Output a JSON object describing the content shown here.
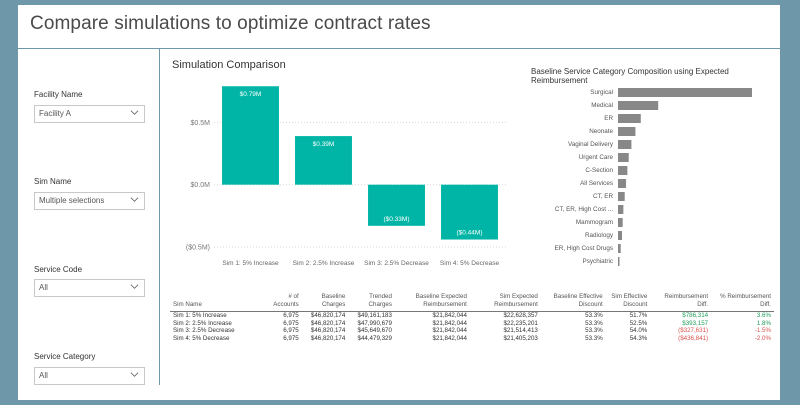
{
  "page": {
    "title": "Compare simulations to optimize contract rates"
  },
  "slicers": [
    {
      "label": "Facility Name",
      "value": "Facility A"
    },
    {
      "label": "Sim Name",
      "value": "Multiple selections"
    },
    {
      "label": "Service Code",
      "value": "All"
    },
    {
      "label": "Service Category",
      "value": "All"
    }
  ],
  "chart_data": [
    {
      "type": "bar",
      "title": "Simulation Comparison",
      "categories": [
        "Sim 1: 5% Increase",
        "Sim 2: 2.5% Increase",
        "Sim 3: 2.5% Decrease",
        "Sim 4: 5% Decrease"
      ],
      "values": [
        0.79,
        0.39,
        -0.33,
        -0.44
      ],
      "data_labels": [
        "$0.79M",
        "$0.39M",
        "($0.33M)",
        "($0.44M)"
      ],
      "ylim": [
        -0.5,
        0.8
      ],
      "yticks": [
        0.5,
        0.0,
        -0.5
      ],
      "ytick_labels": [
        "$0.5M",
        "$0.0M",
        "($0.5M)"
      ],
      "color": "#00b5a5",
      "grid": true
    },
    {
      "type": "bar",
      "orientation": "horizontal",
      "title": "Baseline Service Category Composition using Expected Reimbursement",
      "categories": [
        "Surgical",
        "Medical",
        "ER",
        "Neonate",
        "Vaginal Delivery",
        "Urgent Care",
        "C-Section",
        "All Services",
        "CT, ER",
        "CT, ER, High Cost ...",
        "Mammogram",
        "Radiology",
        "ER, High Cost Drugs",
        "Psychiatric"
      ],
      "values": [
        100,
        30,
        17,
        13,
        10,
        8,
        7,
        6,
        5,
        4,
        3.5,
        3,
        2,
        1
      ],
      "color": "#888888"
    }
  ],
  "table": {
    "headers": [
      "Sim Name",
      "# of Accounts",
      "Baseline Charges",
      "Trended Charges",
      "Baseline Expected Reimbursement",
      "Sim Expected Reimbursement",
      "Baseline Effective Discount",
      "Sim Effective Discount",
      "Reimbursement Diff.",
      "% Reimbursement Diff."
    ],
    "rows": [
      [
        "Sim 1: 5% Increase",
        "6,975",
        "$46,820,174",
        "$49,161,183",
        "$21,842,044",
        "$22,628,357",
        "53.3%",
        "51.7%",
        "$786,314",
        "3.6%"
      ],
      [
        "Sim 2: 2.5% Increase",
        "6,975",
        "$46,820,174",
        "$47,990,679",
        "$21,842,044",
        "$22,235,201",
        "53.3%",
        "52.5%",
        "$393,157",
        "1.8%"
      ],
      [
        "Sim 3: 2.5% Decrease",
        "6,975",
        "$46,820,174",
        "$45,649,670",
        "$21,842,044",
        "$21,514,413",
        "53.3%",
        "54.0%",
        "($327,631)",
        "-1.5%"
      ],
      [
        "Sim 4: 5% Decrease",
        "6,975",
        "$46,820,174",
        "$44,479,329",
        "$21,842,044",
        "$21,405,203",
        "53.3%",
        "54.3%",
        "($436,841)",
        "-2.0%"
      ]
    ],
    "colors": {
      "positive": "#1e9c5a",
      "negative": "#d9534f"
    }
  }
}
